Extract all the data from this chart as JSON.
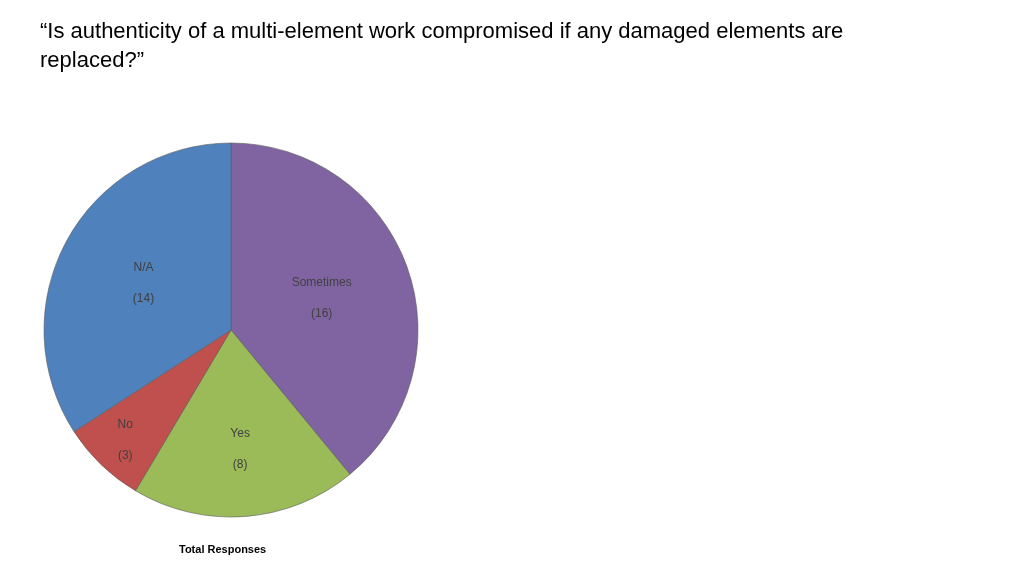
{
  "chart_data": {
    "type": "pie",
    "title": "“Is authenticity of a multi-element work compromised if any damaged elements are replaced?”",
    "categories": [
      "Sometimes",
      "Yes",
      "No",
      "N/A"
    ],
    "values": [
      16,
      8,
      3,
      14
    ],
    "value_labels": [
      "(16)",
      "(8)",
      "(3)",
      "(14)"
    ],
    "colors": [
      "#8064a2",
      "#9bbb59",
      "#c0504d",
      "#4f81bd"
    ],
    "annotations": [
      "Total Responses"
    ],
    "legend": false
  }
}
